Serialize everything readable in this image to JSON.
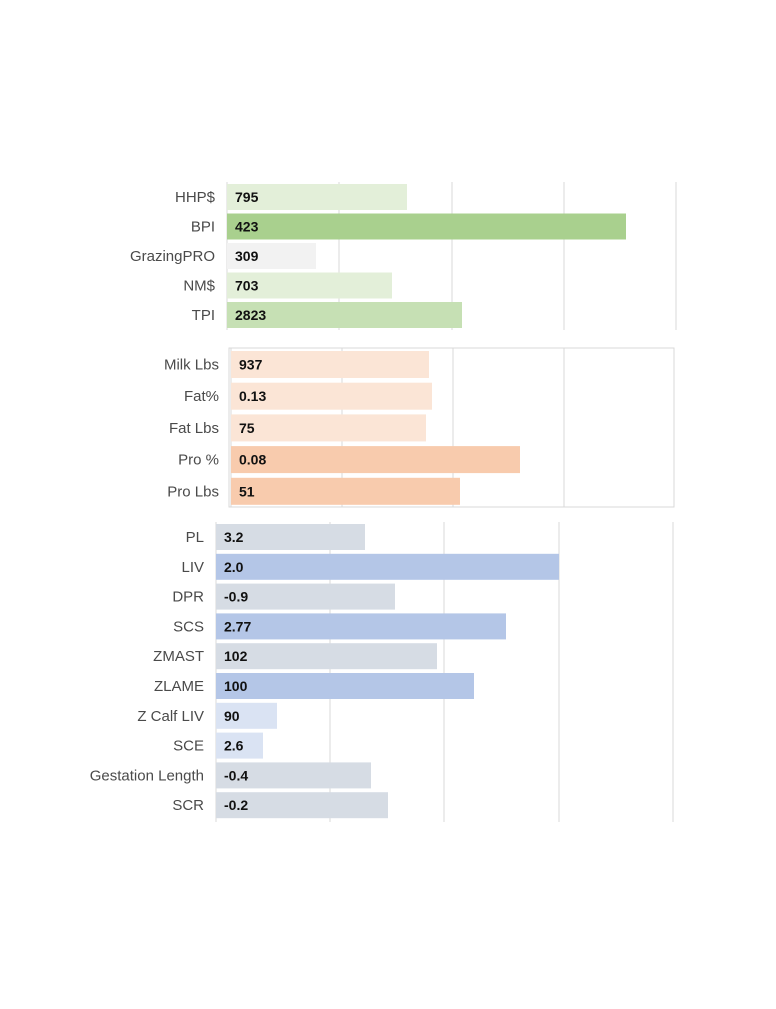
{
  "chart_data": [
    {
      "type": "bar",
      "orientation": "horizontal",
      "grid": true,
      "categories": [
        "HHP$",
        "BPI",
        "GrazingPRO",
        "NM$",
        "TPI"
      ],
      "values": [
        795,
        423,
        309,
        703,
        2823
      ],
      "value_labels": [
        "795",
        "423",
        "309",
        "703",
        "2823"
      ],
      "bar_colors": [
        "#e3efd9",
        "#a9d08e",
        "#f2f2f2",
        "#e3efd9",
        "#c6e0b4"
      ]
    },
    {
      "type": "bar",
      "orientation": "horizontal",
      "grid": true,
      "categories": [
        "Milk Lbs",
        "Fat%",
        "Fat Lbs",
        "Pro %",
        "Pro Lbs"
      ],
      "values": [
        937,
        0.13,
        75,
        0.08,
        51
      ],
      "value_labels": [
        "937",
        "0.13",
        "75",
        "0.08",
        "51"
      ],
      "bar_colors": [
        "#fbe5d6",
        "#fbe5d6",
        "#fbe5d6",
        "#f8cbad",
        "#f8cbad"
      ]
    },
    {
      "type": "bar",
      "orientation": "horizontal",
      "grid": true,
      "categories": [
        "PL",
        "LIV",
        "DPR",
        "SCS",
        "ZMAST",
        "ZLAME",
        "Z Calf LIV",
        "SCE",
        "Gestation Length",
        "SCR"
      ],
      "values": [
        3.2,
        2.0,
        -0.9,
        2.77,
        102,
        100,
        90,
        2.6,
        -0.4,
        -0.2
      ],
      "value_labels": [
        "3.2",
        "2.0",
        "-0.9",
        "2.77",
        "102",
        "100",
        "90",
        "2.6",
        "-0.4",
        "-0.2"
      ],
      "bar_colors": [
        "#d6dce4",
        "#b4c6e7",
        "#d6dce4",
        "#b4c6e7",
        "#d6dce4",
        "#b4c6e7",
        "#dae3f3",
        "#dae3f3",
        "#d6dce4",
        "#d6dce4"
      ]
    }
  ]
}
